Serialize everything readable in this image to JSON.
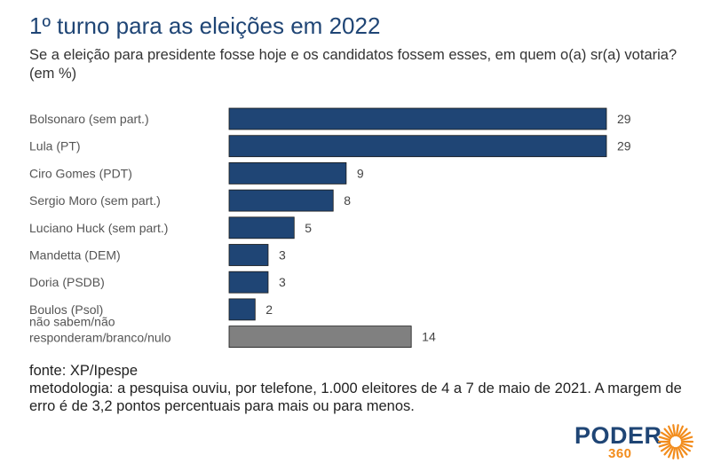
{
  "header": {
    "title": "1º turno para as eleições em 2022",
    "subtitle": "Se a eleição para presidente fosse hoje e os candidatos fossem esses, em quem o(a) sr(a) votaria? (em %)"
  },
  "chart_data": {
    "type": "bar",
    "orientation": "horizontal",
    "categories": [
      [
        "Bolsonaro (sem part.)"
      ],
      [
        "Lula (PT)"
      ],
      [
        "Ciro Gomes (PDT)"
      ],
      [
        "Sergio Moro (sem part.)"
      ],
      [
        "Luciano Huck (sem part.)"
      ],
      [
        "Mandetta (DEM)"
      ],
      [
        "Doria (PSDB)"
      ],
      [
        "Boulos (Psol)"
      ],
      [
        "não sabem/não",
        "responderam/branco/nulo"
      ]
    ],
    "values": [
      29,
      29,
      9,
      8,
      5,
      3,
      3,
      2,
      14
    ],
    "colors": [
      "#1f4575",
      "#1f4575",
      "#1f4575",
      "#1f4575",
      "#1f4575",
      "#1f4575",
      "#1f4575",
      "#1f4575",
      "#808080"
    ],
    "xlim": [
      0,
      29
    ],
    "grid": false,
    "legend": "none"
  },
  "footer": {
    "source": "fonte: XP/Ipespe",
    "methodology": "metodologia: a pesquisa ouviu, por telefone, 1.000 eleitores de 4 a 7 de maio de 2021. A margem de erro é de 3,2 pontos percentuais para mais ou para menos."
  },
  "brand": {
    "name": "PODER",
    "number": "360",
    "primary_color": "#1f4575",
    "accent_color": "#f28c1c",
    "icon": "sun-burst-icon"
  }
}
